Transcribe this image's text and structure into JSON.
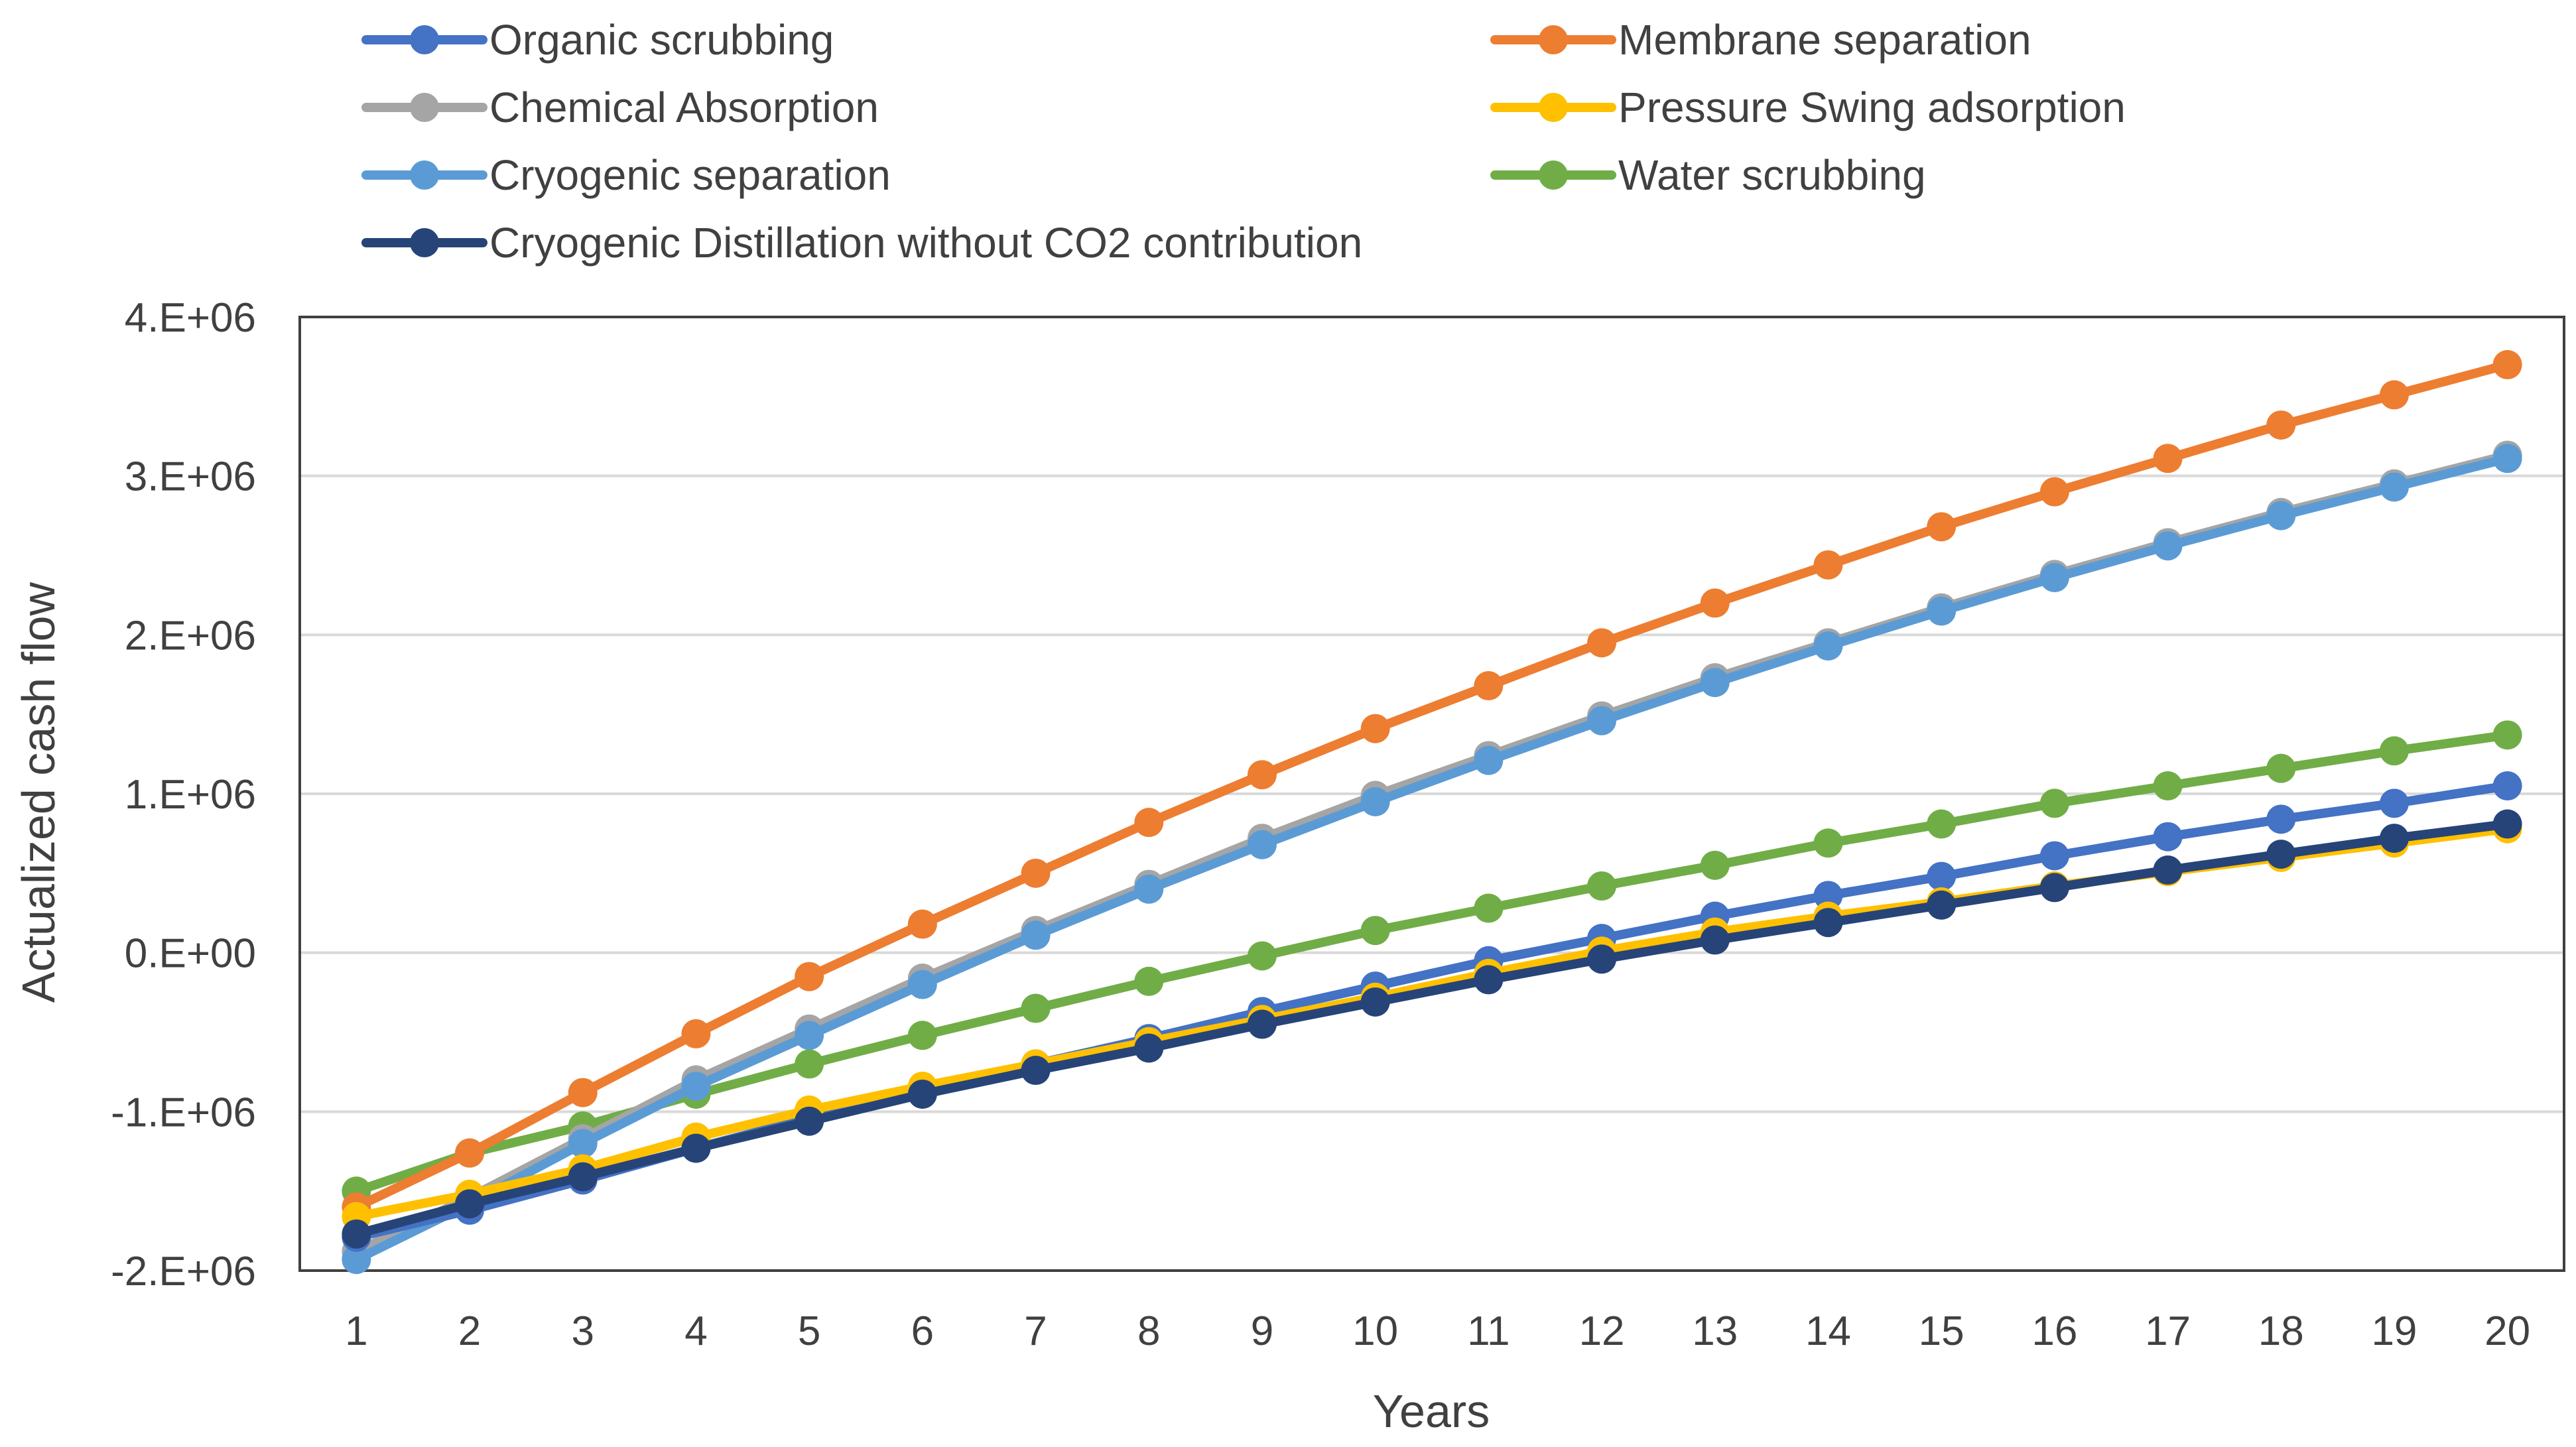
{
  "chart_data": {
    "type": "line",
    "title": "",
    "xlabel": "Years",
    "ylabel": "Actualized cash flow",
    "x": [
      1,
      2,
      3,
      4,
      5,
      6,
      7,
      8,
      9,
      10,
      11,
      12,
      13,
      14,
      15,
      16,
      17,
      18,
      19,
      20
    ],
    "ylim": [
      -2000000,
      4000000
    ],
    "yticks": [
      -2000000,
      -1000000,
      0,
      1000000,
      2000000,
      3000000,
      4000000
    ],
    "ytick_labels": [
      "-2.E+06",
      "-1.E+06",
      "0.E+00",
      "1.E+06",
      "2.E+06",
      "3.E+06",
      "4.E+06"
    ],
    "xtick_labels": [
      "1",
      "2",
      "3",
      "4",
      "5",
      "6",
      "7",
      "8",
      "9",
      "10",
      "11",
      "12",
      "13",
      "14",
      "15",
      "16",
      "17",
      "18",
      "19",
      "20"
    ],
    "grid": "horizontal",
    "legend_position": "top",
    "series": [
      {
        "name": "Organic scrubbing",
        "color": "#4472C4",
        "values": [
          -1790000,
          -1620000,
          -1430000,
          -1230000,
          -1040000,
          -870000,
          -700000,
          -540000,
          -370000,
          -210000,
          -50000,
          90000,
          230000,
          360000,
          480000,
          610000,
          730000,
          840000,
          940000,
          1050000
        ]
      },
      {
        "name": "Chemical Absorption",
        "color": "#A5A5A5",
        "values": [
          -1880000,
          -1540000,
          -1170000,
          -800000,
          -480000,
          -160000,
          140000,
          430000,
          720000,
          990000,
          1240000,
          1490000,
          1730000,
          1950000,
          2170000,
          2380000,
          2580000,
          2770000,
          2950000,
          3130000
        ]
      },
      {
        "name": "Cryogenic separation",
        "color": "#5B9BD5",
        "values": [
          -1930000,
          -1580000,
          -1200000,
          -840000,
          -520000,
          -200000,
          110000,
          400000,
          680000,
          950000,
          1210000,
          1460000,
          1700000,
          1930000,
          2150000,
          2360000,
          2560000,
          2750000,
          2930000,
          3110000
        ]
      },
      {
        "name": "Cryogenic Distillation without CO2 contribution",
        "color": "#264478",
        "values": [
          -1770000,
          -1580000,
          -1410000,
          -1230000,
          -1060000,
          -890000,
          -740000,
          -600000,
          -450000,
          -310000,
          -170000,
          -40000,
          80000,
          190000,
          300000,
          410000,
          520000,
          620000,
          720000,
          810000
        ]
      },
      {
        "name": "Membrane separation",
        "color": "#ED7D31",
        "values": [
          -1600000,
          -1260000,
          -880000,
          -510000,
          -150000,
          180000,
          500000,
          820000,
          1120000,
          1410000,
          1680000,
          1950000,
          2200000,
          2440000,
          2680000,
          2900000,
          3110000,
          3320000,
          3510000,
          3700000
        ]
      },
      {
        "name": "Pressure Swing adsorption",
        "color": "#FFC000",
        "values": [
          -1660000,
          -1520000,
          -1360000,
          -1160000,
          -990000,
          -840000,
          -700000,
          -560000,
          -420000,
          -280000,
          -130000,
          10000,
          130000,
          230000,
          320000,
          420000,
          510000,
          600000,
          690000,
          780000
        ]
      },
      {
        "name": "Water scrubbing",
        "color": "#70AD47",
        "values": [
          -1500000,
          -1260000,
          -1090000,
          -890000,
          -700000,
          -520000,
          -350000,
          -180000,
          -20000,
          140000,
          280000,
          420000,
          550000,
          690000,
          810000,
          940000,
          1050000,
          1160000,
          1270000,
          1370000
        ]
      }
    ],
    "legend": {
      "left_column": [
        "Organic scrubbing",
        "Chemical Absorption",
        "Cryogenic separation",
        "Cryogenic Distillation without CO2 contribution"
      ],
      "right_column": [
        "Membrane separation",
        "Pressure Swing adsorption",
        "Water scrubbing"
      ]
    }
  }
}
